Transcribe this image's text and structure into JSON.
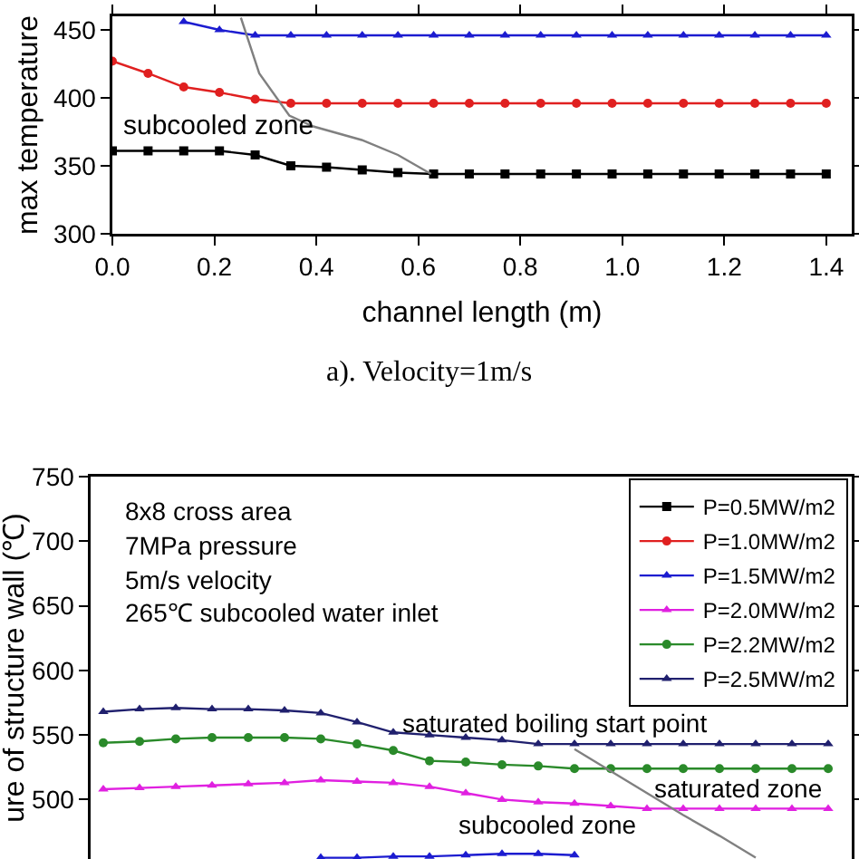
{
  "chart_data": [
    {
      "type": "line",
      "xlabel": "channel length (m)",
      "ylabel": "max temperature",
      "annotations": [
        "subcooled zone",
        "a). Velocity=1m/s"
      ],
      "x": [
        0,
        0.07,
        0.14,
        0.21,
        0.28,
        0.35,
        0.42,
        0.49,
        0.56,
        0.63,
        0.7,
        0.77,
        0.84,
        0.91,
        0.98,
        1.05,
        1.12,
        1.19,
        1.26,
        1.33,
        1.4
      ],
      "xlim": [
        0,
        1.45
      ],
      "xticks": [
        {
          "value": 0,
          "label": "0.0"
        },
        0.2,
        0.4,
        0.6,
        0.8,
        {
          "value": 1,
          "label": "1.0"
        },
        1.2,
        1.4
      ],
      "ylim": [
        300,
        460
      ],
      "yticks": [
        300,
        350,
        400,
        450
      ],
      "grid": false,
      "legend": false,
      "series": [
        {
          "color": "#000000",
          "marker": "square",
          "values": [
            361,
            361,
            361,
            361,
            358,
            350,
            349,
            347,
            345,
            344,
            344,
            344,
            344,
            344,
            344,
            344,
            344,
            344,
            344,
            344,
            344
          ]
        },
        {
          "color": "#e02020",
          "marker": "circle",
          "values": [
            427,
            418,
            408,
            404,
            399,
            396,
            396,
            396,
            396,
            396,
            396,
            396,
            396,
            396,
            396,
            396,
            396,
            396,
            396,
            396,
            396
          ]
        },
        {
          "color": "#1c1cd0",
          "marker": "triangle",
          "values": [
            null,
            null,
            456,
            450,
            446,
            446,
            446,
            446,
            446,
            446,
            446,
            446,
            446,
            446,
            446,
            446,
            446,
            446,
            446,
            446,
            446
          ]
        },
        {
          "color": "#808080",
          "marker": "none",
          "x": [
            0.252,
            0.288,
            0.347,
            0.394,
            0.489,
            0.56,
            0.625
          ],
          "values": [
            459,
            418,
            387,
            379,
            369,
            358,
            344
          ]
        }
      ]
    },
    {
      "type": "line",
      "ylabel": "ure of structure wall (℃)",
      "annotations": [
        "8x8 cross area",
        "7MPa pressure",
        "5m/s velocity",
        "265℃ subcooled water inlet",
        "saturated boiling start point",
        "saturated zone",
        "subcooled zone"
      ],
      "categories": [
        null,
        null,
        null,
        null,
        null,
        null,
        null,
        null,
        null,
        null,
        null,
        null,
        null,
        null,
        null,
        null,
        null,
        null,
        null,
        null,
        null
      ],
      "ylim": [
        454,
        750
      ],
      "yticks": [
        500,
        550,
        600,
        650,
        700,
        750
      ],
      "tick_labels": "y",
      "grid": false,
      "legend": "top right",
      "series": [
        {
          "name": "P=0.5MW/m2",
          "color": "#000000",
          "marker": "square",
          "values": [
            null,
            null,
            null,
            null,
            null,
            null,
            null,
            null,
            null,
            null,
            null,
            null,
            null,
            null,
            null,
            null,
            null,
            null,
            null,
            null,
            null
          ]
        },
        {
          "name": "P=1.0MW/m2",
          "color": "#e02020",
          "marker": "circle",
          "values": [
            null,
            null,
            null,
            null,
            null,
            null,
            null,
            null,
            null,
            null,
            null,
            null,
            null,
            null,
            null,
            null,
            null,
            null,
            null,
            null,
            null
          ]
        },
        {
          "name": "P=1.5MW/m2",
          "color": "#1c1cd0",
          "marker": "triangle",
          "values": [
            null,
            null,
            null,
            null,
            null,
            null,
            455,
            455,
            456,
            456,
            457,
            458,
            458,
            457,
            null,
            null,
            null,
            null,
            null,
            null,
            null
          ]
        },
        {
          "name": "P=2.0MW/m2",
          "color": "#e020e0",
          "marker": "triangle",
          "values": [
            508,
            509,
            510,
            511,
            512,
            513,
            515,
            514,
            513,
            510,
            505,
            500,
            498,
            497,
            495,
            493,
            493,
            493,
            493,
            493,
            493
          ]
        },
        {
          "name": "P=2.2MW/m2",
          "color": "#2a8a2a",
          "marker": "circle",
          "values": [
            544,
            545,
            547,
            548,
            548,
            548,
            547,
            543,
            538,
            530,
            529,
            527,
            526,
            524,
            524,
            524,
            524,
            524,
            524,
            524,
            524
          ]
        },
        {
          "name": "P=2.5MW/m2",
          "color": "#20206e",
          "marker": "triangle",
          "values": [
            568,
            570,
            571,
            570,
            570,
            569,
            567,
            560,
            552,
            550,
            548,
            546,
            543,
            543,
            543,
            543,
            543,
            543,
            543,
            543,
            543
          ]
        },
        {
          "color": "#808080",
          "marker": "none",
          "values": [
            null,
            null,
            null,
            null,
            null,
            null,
            null,
            null,
            null,
            null,
            null,
            null,
            null,
            539,
            522,
            505,
            488,
            472,
            455,
            null,
            null
          ]
        }
      ]
    }
  ]
}
